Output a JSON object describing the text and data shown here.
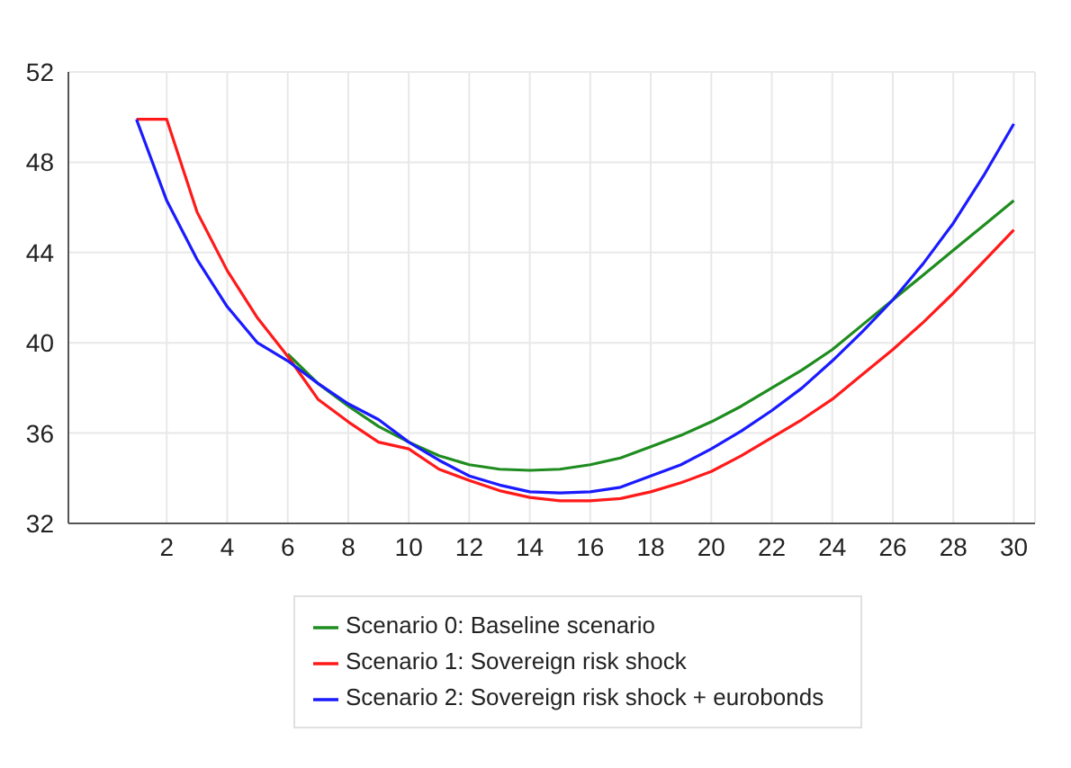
{
  "chart_data": {
    "type": "line",
    "x": [
      1,
      2,
      3,
      4,
      5,
      6,
      7,
      8,
      9,
      10,
      11,
      12,
      13,
      14,
      15,
      16,
      17,
      18,
      19,
      20,
      21,
      22,
      23,
      24,
      25,
      26,
      27,
      28,
      29,
      30
    ],
    "xlim": [
      -1.25,
      30.7
    ],
    "xticks": [
      2,
      4,
      6,
      8,
      10,
      12,
      14,
      16,
      18,
      20,
      22,
      24,
      26,
      28,
      30
    ],
    "ylim": [
      32,
      52
    ],
    "yticks": [
      32,
      36,
      40,
      44,
      48,
      52
    ],
    "grid": true,
    "legend": "bottom",
    "marker": "none",
    "line_style": "solid",
    "series": [
      {
        "name": "Scenario 0: Baseline scenario",
        "color": "#1e8c1e",
        "values": [
          null,
          null,
          null,
          null,
          null,
          39.5,
          38.2,
          37.2,
          36.3,
          35.6,
          35.0,
          34.6,
          34.4,
          34.35,
          34.4,
          34.6,
          34.9,
          35.4,
          35.9,
          36.5,
          37.2,
          38.0,
          38.8,
          39.7,
          40.8,
          41.9,
          43.0,
          44.1,
          45.2,
          46.3
        ]
      },
      {
        "name": "Scenario 1: Sovereign risk shock",
        "color": "#ff1a1a",
        "values": [
          49.9,
          49.9,
          45.8,
          43.2,
          41.1,
          39.4,
          37.5,
          36.5,
          35.6,
          35.3,
          34.4,
          33.9,
          33.45,
          33.15,
          33.0,
          33.0,
          33.1,
          33.4,
          33.8,
          34.3,
          35.0,
          35.8,
          36.6,
          37.5,
          38.6,
          39.7,
          40.9,
          42.2,
          43.6,
          45.0
        ]
      },
      {
        "name": "Scenario 2: Sovereign risk shock + eurobonds",
        "color": "#1a1aff",
        "values": [
          49.9,
          46.3,
          43.7,
          41.6,
          40.0,
          39.2,
          38.2,
          37.3,
          36.6,
          35.6,
          34.8,
          34.1,
          33.7,
          33.4,
          33.35,
          33.4,
          33.6,
          34.1,
          34.6,
          35.3,
          36.1,
          37.0,
          38.0,
          39.2,
          40.5,
          41.9,
          43.5,
          45.3,
          47.4,
          49.7
        ]
      }
    ]
  }
}
